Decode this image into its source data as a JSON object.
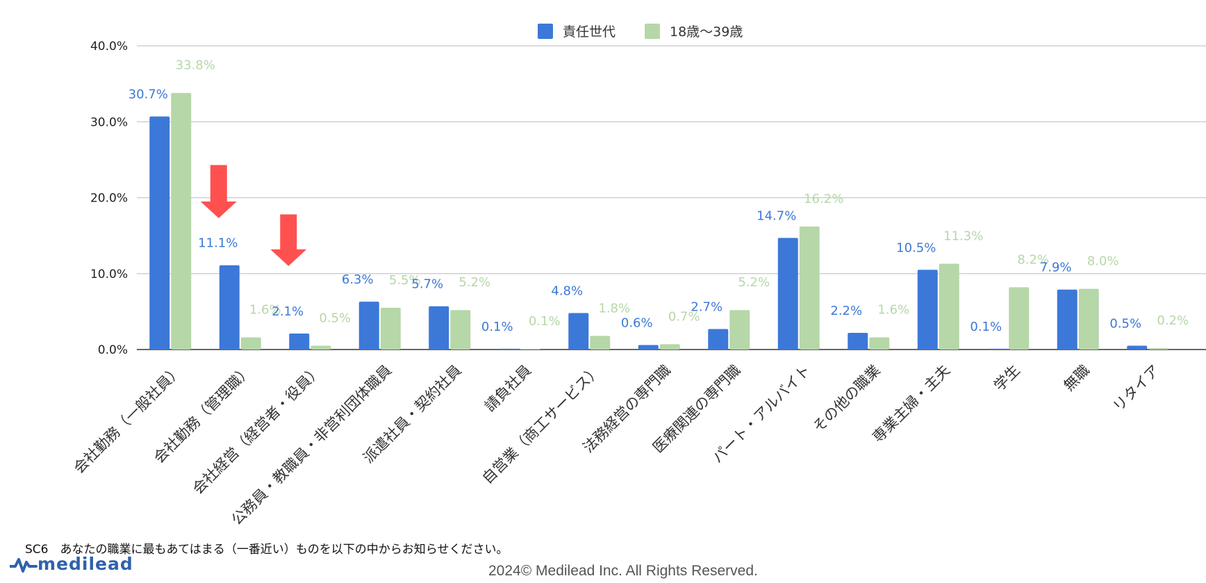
{
  "chart_data": {
    "type": "bar",
    "categories": [
      "会社勤務（一般社員）",
      "会社勤務（管理職）",
      "会社経営（経営者・役員）",
      "公務員・教職員・非営利団体職員",
      "派遣社員・契約社員",
      "請負社員",
      "自営業（商工サービス）",
      "法務経営の専門職",
      "医療関連の専門職",
      "パート・アルバイト",
      "その他の職業",
      "専業主婦・主夫",
      "学生",
      "無職",
      "リタイア"
    ],
    "series": [
      {
        "name": "責任世代",
        "color": "#3c78d8",
        "values": [
          30.7,
          11.1,
          2.1,
          6.3,
          5.7,
          0.1,
          4.8,
          0.6,
          2.7,
          14.7,
          2.2,
          10.5,
          0.1,
          7.9,
          0.5
        ],
        "labels": [
          "30.7%",
          "11.1%",
          "2.1%",
          "6.3%",
          "5.7%",
          "0.1%",
          "4.8%",
          "0.6%",
          "2.7%",
          "14.7%",
          "2.2%",
          "10.5%",
          "0.1%",
          "7.9%",
          "0.5%"
        ]
      },
      {
        "name": "18歳〜39歳",
        "color": "#b6d7a8",
        "values": [
          33.8,
          1.6,
          0.5,
          5.5,
          5.2,
          0.1,
          1.8,
          0.7,
          5.2,
          16.2,
          1.6,
          11.3,
          8.2,
          8.0,
          0.2
        ],
        "labels": [
          "33.8%",
          "1.6%",
          "0.5%",
          "5.5%",
          "5.2%",
          "0.1%",
          "1.8%",
          "0.7%",
          "5.2%",
          "16.2%",
          "1.6%",
          "11.3%",
          "8.2%",
          "8.0%",
          "0.2%"
        ]
      }
    ],
    "y_ticks": [
      0,
      10,
      20,
      30,
      40
    ],
    "y_tick_labels": [
      "0.0%",
      "10.0%",
      "20.0%",
      "30.0%",
      "40.0%"
    ],
    "ylim": [
      0,
      40
    ],
    "grid": true,
    "legend_position": "top-center",
    "arrow_color": "#ff5050",
    "arrow_annotations": [
      {
        "category_index": 1,
        "from": 24.3,
        "to": 17.3
      },
      {
        "category_index": 2,
        "from": 17.8,
        "to": 11.0
      }
    ]
  },
  "footer": {
    "question": "SC6　あなたの職業に最もあてはまる（一番近い）ものを以下の中からお知らせください。",
    "logo_text": "medilead",
    "copyright": "2024© Medilead Inc. All Rights Reserved."
  },
  "colors": {
    "logo": "#2f62ad"
  }
}
